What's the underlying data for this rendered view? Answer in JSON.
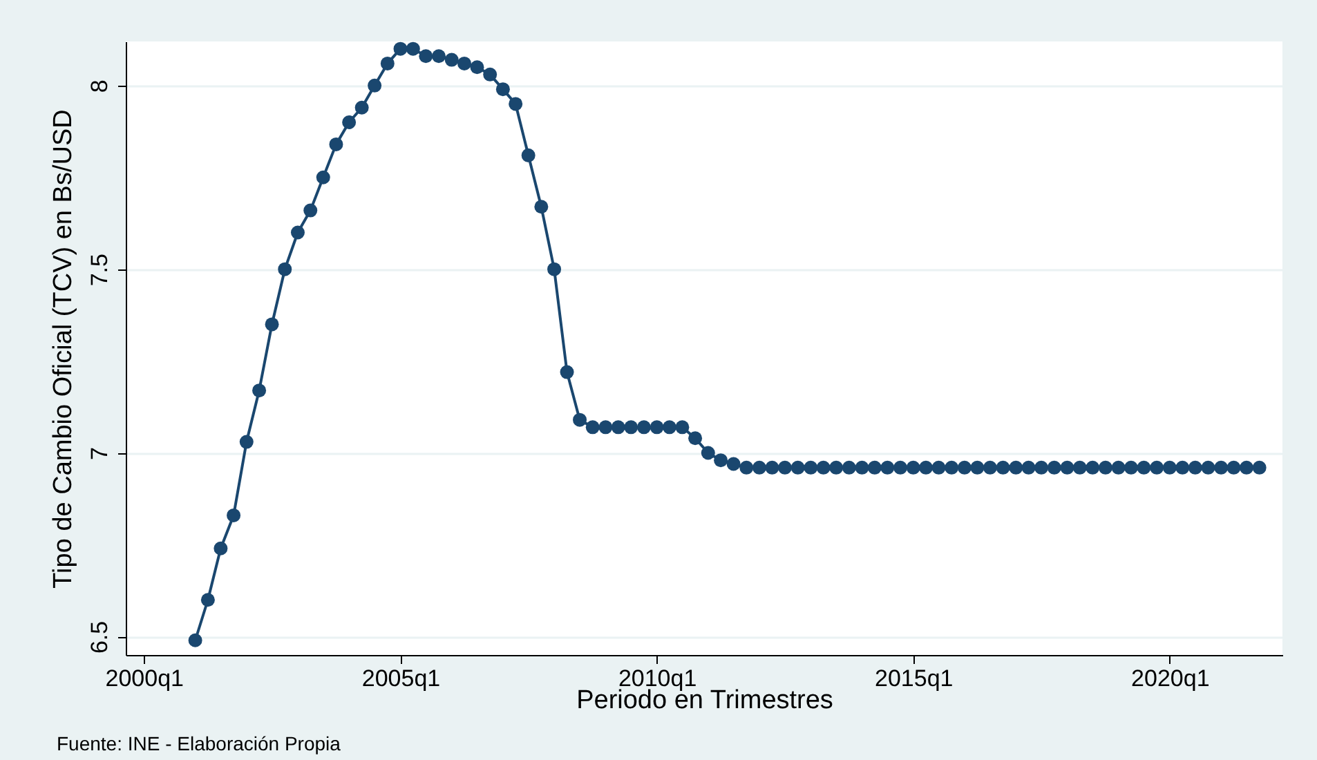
{
  "chart_data": {
    "type": "line",
    "xlabel": "Periodo en Trimestres",
    "ylabel": "Tipo de Cambio Oficial (TCV) en Bs/USD",
    "annotations": [
      "Fuente: INE - Elaboración Propia"
    ],
    "x": [
      "2001-01",
      "2001-04",
      "2001-07",
      "2001-10",
      "2002-01",
      "2002-04",
      "2002-07",
      "2002-10",
      "2003-01",
      "2003-04",
      "2003-07",
      "2003-10",
      "2004-01",
      "2004-04",
      "2004-07",
      "2004-10",
      "2005-01",
      "2005-04",
      "2005-07",
      "2005-10",
      "2006-01",
      "2006-04",
      "2006-07",
      "2006-10",
      "2007-01",
      "2007-04",
      "2007-07",
      "2007-10",
      "2008-01",
      "2008-04",
      "2008-07",
      "2008-10",
      "2009-01",
      "2009-04",
      "2009-07",
      "2009-10",
      "2010-01",
      "2010-04",
      "2010-07",
      "2010-10",
      "2011-01",
      "2011-04",
      "2011-07",
      "2011-10",
      "2012-01",
      "2012-04",
      "2012-07",
      "2012-10",
      "2013-01",
      "2013-04",
      "2013-07",
      "2013-10",
      "2014-01",
      "2014-04",
      "2014-07",
      "2014-10",
      "2015-01",
      "2015-04",
      "2015-07",
      "2015-10",
      "2016-01",
      "2016-04",
      "2016-07",
      "2016-10",
      "2017-01",
      "2017-04",
      "2017-07",
      "2017-10",
      "2018-01",
      "2018-04",
      "2018-07",
      "2018-10",
      "2019-01",
      "2019-04",
      "2019-07",
      "2019-10",
      "2020-01",
      "2020-04",
      "2020-07",
      "2020-10",
      "2021-01",
      "2021-04",
      "2021-07",
      "2021-10"
    ],
    "series": [
      {
        "color": "#1a476f",
        "values": [
          6.49,
          6.6,
          6.74,
          6.83,
          7.03,
          7.17,
          7.35,
          7.5,
          7.6,
          7.66,
          7.75,
          7.84,
          7.9,
          7.94,
          8.0,
          8.06,
          8.1,
          8.1,
          8.08,
          8.08,
          8.07,
          8.06,
          8.05,
          8.03,
          7.99,
          7.95,
          7.81,
          7.67,
          7.5,
          7.22,
          7.09,
          7.07,
          7.07,
          7.07,
          7.07,
          7.07,
          7.07,
          7.07,
          7.07,
          7.04,
          7.0,
          6.98,
          6.97,
          6.96,
          6.96,
          6.96,
          6.96,
          6.96,
          6.96,
          6.96,
          6.96,
          6.96,
          6.96,
          6.96,
          6.96,
          6.96,
          6.96,
          6.96,
          6.96,
          6.96,
          6.96,
          6.96,
          6.96,
          6.96,
          6.96,
          6.96,
          6.96,
          6.96,
          6.96,
          6.96,
          6.96,
          6.96,
          6.96,
          6.96,
          6.96,
          6.96,
          6.96,
          6.96,
          6.96,
          6.96,
          6.96,
          6.96,
          6.96,
          6.96
        ]
      }
    ],
    "xlim": [
      "1999-08-25",
      "2022-03-14"
    ],
    "xticks": [
      {
        "value": "2000-01",
        "label": "2000q1"
      },
      {
        "value": "2005-01",
        "label": "2005q1"
      },
      {
        "value": "2010-01",
        "label": "2010q1"
      },
      {
        "value": "2015-01",
        "label": "2015q1"
      },
      {
        "value": "2020-01",
        "label": "2020q1"
      }
    ],
    "ylim": [
      6.45,
      8.12
    ],
    "yticks": [
      6.5,
      7,
      7.5,
      8
    ],
    "grid": "y",
    "marker": "circle",
    "line_style": "solid",
    "legend": false
  }
}
